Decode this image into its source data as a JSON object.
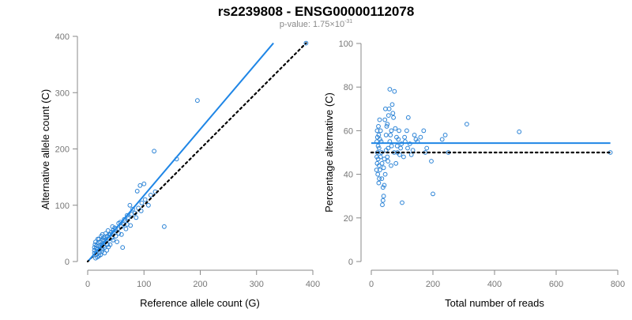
{
  "figure": {
    "title": "rs2239808 - ENSG00000112078",
    "subtitle": {
      "prefix": "p-value: 1.75×10",
      "exponent": "-31"
    }
  },
  "colors": {
    "points": "#2b83d6",
    "fit_line": "#1f86e6",
    "ref_line": "#000000",
    "axis": "#888888",
    "tick_text": "#777777"
  },
  "chart_data": [
    {
      "type": "scatter",
      "xlabel": "Reference allele count (G)",
      "ylabel": "Alternative allele count (C)",
      "xlim": [
        0,
        400
      ],
      "ylim": [
        0,
        400
      ],
      "xticks": [
        0,
        100,
        200,
        300,
        400
      ],
      "yticks": [
        0,
        100,
        200,
        300,
        400
      ],
      "grid": false,
      "fit_line": {
        "style": "solid",
        "points": [
          [
            2,
            2
          ],
          [
            330,
            388
          ]
        ]
      },
      "reference_line": {
        "style": "dotted",
        "points": [
          [
            0,
            0
          ],
          [
            388,
            388
          ]
        ]
      },
      "points": [
        [
          388,
          388
        ],
        [
          195,
          286
        ],
        [
          118,
          196
        ],
        [
          158,
          182
        ],
        [
          93,
          135
        ],
        [
          100,
          138
        ],
        [
          88,
          125
        ],
        [
          120,
          124
        ],
        [
          136,
          62
        ],
        [
          108,
          100
        ],
        [
          95,
          90
        ],
        [
          80,
          93
        ],
        [
          75,
          100
        ],
        [
          70,
          82
        ],
        [
          65,
          75
        ],
        [
          60,
          62
        ],
        [
          55,
          68
        ],
        [
          50,
          58
        ],
        [
          62,
          25
        ],
        [
          45,
          55
        ],
        [
          40,
          48
        ],
        [
          35,
          45
        ],
        [
          30,
          38
        ],
        [
          28,
          32
        ],
        [
          25,
          30
        ],
        [
          22,
          25
        ],
        [
          20,
          28
        ],
        [
          18,
          22
        ],
        [
          16,
          18
        ],
        [
          15,
          12
        ],
        [
          14,
          6
        ],
        [
          13,
          30
        ],
        [
          12,
          25
        ],
        [
          12,
          20
        ],
        [
          12,
          15
        ],
        [
          14,
          35
        ],
        [
          18,
          40
        ],
        [
          20,
          10
        ],
        [
          22,
          35
        ],
        [
          25,
          18
        ],
        [
          28,
          42
        ],
        [
          30,
          25
        ],
        [
          32,
          50
        ],
        [
          35,
          30
        ],
        [
          38,
          40
        ],
        [
          40,
          30
        ],
        [
          42,
          52
        ],
        [
          45,
          38
        ],
        [
          48,
          60
        ],
        [
          50,
          45
        ],
        [
          52,
          35
        ],
        [
          55,
          50
        ],
        [
          58,
          70
        ],
        [
          60,
          48
        ],
        [
          64,
          66
        ],
        [
          68,
          58
        ],
        [
          72,
          78
        ],
        [
          76,
          64
        ],
        [
          84,
          86
        ],
        [
          90,
          95
        ],
        [
          86,
          78
        ],
        [
          24,
          45
        ],
        [
          26,
          22
        ],
        [
          30,
          15
        ],
        [
          34,
          20
        ],
        [
          36,
          55
        ],
        [
          16,
          28
        ],
        [
          19,
          34
        ],
        [
          21,
          16
        ],
        [
          27,
          38
        ],
        [
          29,
          28
        ],
        [
          31,
          44
        ],
        [
          33,
          36
        ],
        [
          37,
          26
        ],
        [
          39,
          48
        ],
        [
          43,
          42
        ],
        [
          46,
          52
        ],
        [
          17,
          8
        ],
        [
          23,
          12
        ],
        [
          15,
          24
        ],
        [
          20,
          40
        ],
        [
          26,
          48
        ],
        [
          44,
          62
        ],
        [
          54,
          58
        ],
        [
          66,
          72
        ],
        [
          78,
          84
        ],
        [
          96,
          104
        ],
        [
          102,
          110
        ],
        [
          112,
          118
        ],
        [
          70,
          66
        ]
      ]
    },
    {
      "type": "scatter",
      "xlabel": "Total number of reads",
      "ylabel": "Percentage alternative (C)",
      "xlim": [
        0,
        800
      ],
      "ylim": [
        0,
        100
      ],
      "xticks": [
        0,
        200,
        400,
        600,
        800
      ],
      "yticks": [
        0,
        20,
        40,
        60,
        80,
        100
      ],
      "grid": false,
      "fit_line": {
        "style": "solid",
        "points": [
          [
            0,
            54.3
          ],
          [
            776,
            54.3
          ]
        ]
      },
      "reference_line": {
        "style": "dotted",
        "points": [
          [
            0,
            50
          ],
          [
            776,
            50
          ]
        ]
      },
      "points": [
        [
          776,
          50
        ],
        [
          480,
          59.5
        ],
        [
          310,
          63
        ],
        [
          240,
          58
        ],
        [
          250,
          50
        ],
        [
          200,
          31
        ],
        [
          195,
          46
        ],
        [
          180,
          52
        ],
        [
          170,
          60
        ],
        [
          150,
          55
        ],
        [
          140,
          58
        ],
        [
          130,
          49
        ],
        [
          120,
          66
        ],
        [
          100,
          27
        ],
        [
          110,
          55
        ],
        [
          90,
          60
        ],
        [
          85,
          50
        ],
        [
          80,
          45
        ],
        [
          75,
          78
        ],
        [
          70,
          68
        ],
        [
          65,
          60
        ],
        [
          60,
          55
        ],
        [
          58,
          70
        ],
        [
          55,
          52
        ],
        [
          52,
          48
        ],
        [
          50,
          62
        ],
        [
          48,
          58
        ],
        [
          45,
          40
        ],
        [
          42,
          35
        ],
        [
          40,
          30
        ],
        [
          38,
          28
        ],
        [
          36,
          26
        ],
        [
          35,
          45
        ],
        [
          33,
          50
        ],
        [
          32,
          55
        ],
        [
          30,
          60
        ],
        [
          30,
          48
        ],
        [
          28,
          42
        ],
        [
          28,
          56
        ],
        [
          27,
          65
        ],
        [
          26,
          38
        ],
        [
          25,
          52
        ],
        [
          25,
          44
        ],
        [
          24,
          58
        ],
        [
          24,
          36
        ],
        [
          23,
          62
        ],
        [
          22,
          47
        ],
        [
          22,
          53
        ],
        [
          21,
          40
        ],
        [
          20,
          57
        ],
        [
          20,
          50
        ],
        [
          19,
          45
        ],
        [
          19,
          60
        ],
        [
          18,
          55
        ],
        [
          18,
          48
        ],
        [
          17,
          42
        ],
        [
          60,
          79
        ],
        [
          68,
          72
        ],
        [
          72,
          66
        ],
        [
          88,
          56
        ],
        [
          95,
          52
        ],
        [
          105,
          48
        ],
        [
          115,
          60
        ],
        [
          125,
          54
        ],
        [
          135,
          51
        ],
        [
          160,
          57
        ],
        [
          44,
          65
        ],
        [
          46,
          70
        ],
        [
          52,
          63
        ],
        [
          56,
          67
        ],
        [
          62,
          58
        ],
        [
          66,
          53
        ],
        [
          78,
          61
        ],
        [
          82,
          57
        ],
        [
          92,
          49
        ],
        [
          98,
          54
        ],
        [
          38,
          34
        ],
        [
          34,
          38
        ],
        [
          40,
          43
        ],
        [
          42,
          47
        ],
        [
          48,
          51
        ],
        [
          54,
          46
        ],
        [
          64,
          44
        ],
        [
          74,
          50
        ],
        [
          84,
          53
        ],
        [
          108,
          57
        ],
        [
          118,
          52
        ],
        [
          145,
          56
        ],
        [
          175,
          50
        ],
        [
          230,
          56
        ]
      ]
    }
  ]
}
